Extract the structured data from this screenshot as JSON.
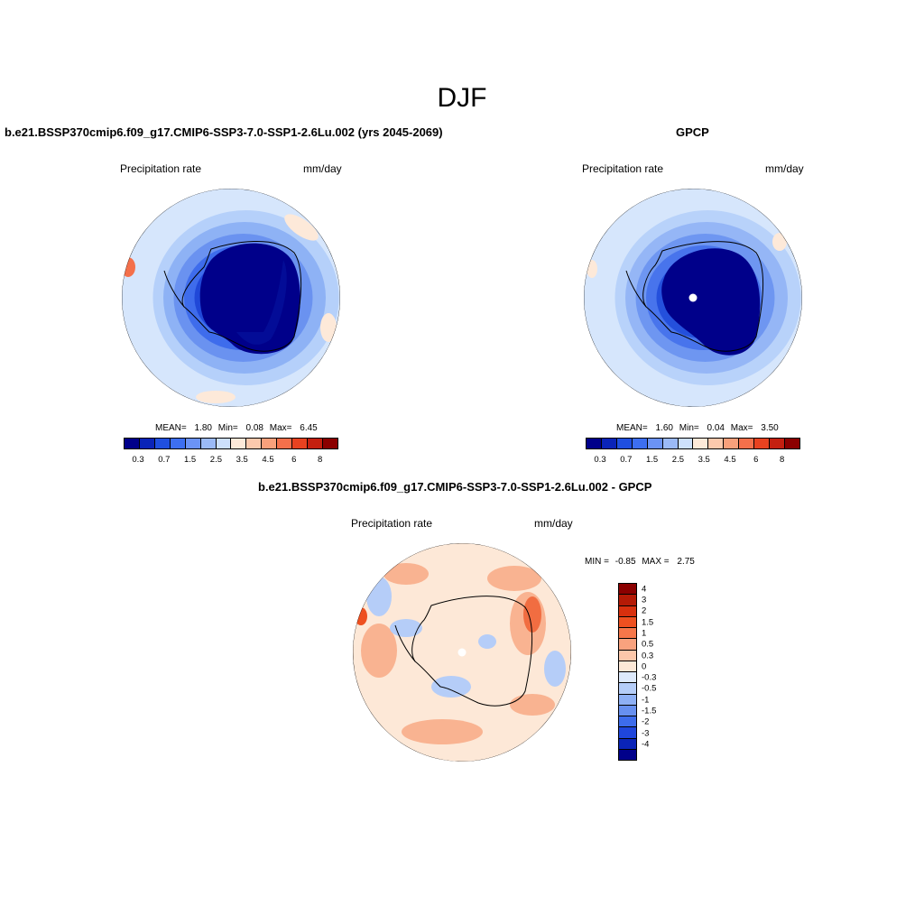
{
  "page_title": "DJF",
  "panels": {
    "model": {
      "title": "b.e21.BSSP370cmip6.f09_g17.CMIP6-SSP3-7.0-SSP1-2.6Lu.002 (yrs 2045-2069)",
      "variable": "Precipitation rate",
      "units": "mm/day",
      "stats": {
        "mean_label": "MEAN=",
        "mean": "1.80",
        "min_label": "Min=",
        "min": "0.08",
        "max_label": "Max=",
        "max": "6.45"
      }
    },
    "obs": {
      "title": "GPCP",
      "variable": "Precipitation rate",
      "units": "mm/day",
      "stats": {
        "mean_label": "MEAN=",
        "mean": "1.60",
        "min_label": "Min=",
        "min": "0.04",
        "max_label": "Max=",
        "max": "3.50"
      }
    },
    "diff": {
      "title": "b.e21.BSSP370cmip6.f09_g17.CMIP6-SSP3-7.0-SSP1-2.6Lu.002 - GPCP",
      "variable": "Precipitation rate",
      "units": "mm/day",
      "stats": {
        "min_label": "MIN =",
        "min": "-0.85",
        "max_label": "MAX =",
        "max": "2.75"
      }
    }
  },
  "colorbar_abs": {
    "colors": [
      "#00008a",
      "#0a24b8",
      "#1f4fe0",
      "#3d6ff0",
      "#6b93f5",
      "#9bbaf7",
      "#cde0fc",
      "#fde9d9",
      "#fcc9ad",
      "#f9a07b",
      "#f4704b",
      "#e84220",
      "#c42010",
      "#8b0000"
    ],
    "tick_labels": [
      "0.3",
      "0.7",
      "1.5",
      "2.5",
      "3.5",
      "4.5",
      "6",
      "8"
    ]
  },
  "colorbar_diff": {
    "colors": [
      "#8b0000",
      "#b41a06",
      "#d8300e",
      "#ee5020",
      "#f6774a",
      "#f9a27e",
      "#fcc7aa",
      "#fde8d7",
      "#dde9fb",
      "#b5cdf8",
      "#8eb0f5",
      "#6790f0",
      "#3d6cec",
      "#1f46dc",
      "#0a24b8",
      "#00008a"
    ],
    "tick_labels": [
      "4",
      "3",
      "2",
      "1.5",
      "1",
      "0.5",
      "0.3",
      "0",
      "-0.3",
      "-0.5",
      "-1",
      "-1.5",
      "-2",
      "-3",
      "-4"
    ]
  },
  "maps": {
    "model": {
      "ocean_ring": [
        "#d6e6fc",
        "#b5d0fa",
        "#8eb2f5",
        "#6a92f0",
        "#3e6cec",
        "#2048d8",
        "#0a22b0"
      ],
      "interior": "#00008a"
    },
    "obs": {
      "ocean_ring": [
        "#d6e6fc",
        "#b8d2fa",
        "#95b6f6",
        "#6e96f1",
        "#4874ec",
        "#2450dc",
        "#0c2ab8"
      ],
      "interior": "#00008a"
    },
    "diff": {
      "base": "#fde8d7",
      "pos": "#f9b391",
      "neg": "#b5cdf8",
      "strong_pos": "#ee5020"
    }
  }
}
